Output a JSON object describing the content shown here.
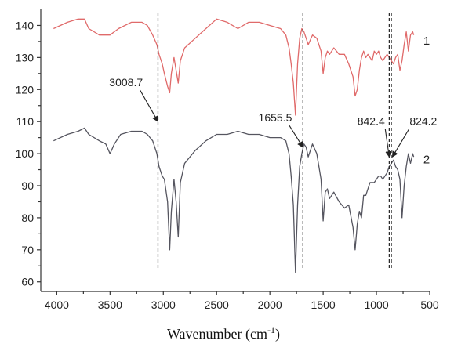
{
  "chart_data": {
    "type": "line",
    "xlabel": "Wavenumber (cm",
    "xlabel_sup": "-1",
    "xlabel_close": ")",
    "ylabel": "",
    "xlim": [
      4150,
      500
    ],
    "ylim": [
      57,
      145
    ],
    "x_ticks": [
      4000,
      3500,
      3000,
      2500,
      2000,
      1500,
      1000,
      500
    ],
    "y_ticks": [
      60,
      70,
      80,
      90,
      100,
      110,
      120,
      130,
      140
    ],
    "reference_lines": [
      3050,
      1690,
      880,
      860
    ],
    "annotations": [
      {
        "text": "3008.7",
        "text_x": 3350,
        "text_y": 121,
        "arrow_to_x": 3050,
        "arrow_to_y": 110
      },
      {
        "text": "1655.5",
        "text_x": 1950,
        "text_y": 110,
        "arrow_to_x": 1690,
        "arrow_to_y": 102
      },
      {
        "text": "842.4",
        "text_x": 1050,
        "text_y": 109,
        "arrow_to_x": 880,
        "arrow_to_y": 99
      },
      {
        "text": "824.2",
        "text_x": 560,
        "text_y": 109,
        "arrow_to_x": 850,
        "arrow_to_y": 99
      }
    ],
    "series": [
      {
        "name": "1",
        "color": "#e06a6a",
        "label_x": 560,
        "label_y": 134,
        "x": [
          4030,
          3900,
          3800,
          3740,
          3700,
          3600,
          3500,
          3420,
          3300,
          3200,
          3150,
          3100,
          3060,
          3040,
          3010,
          2990,
          2960,
          2940,
          2925,
          2900,
          2880,
          2860,
          2840,
          2800,
          2700,
          2600,
          2500,
          2400,
          2300,
          2200,
          2100,
          2000,
          1900,
          1850,
          1820,
          1800,
          1780,
          1760,
          1740,
          1720,
          1700,
          1680,
          1660,
          1640,
          1600,
          1560,
          1520,
          1500,
          1480,
          1460,
          1440,
          1400,
          1350,
          1300,
          1260,
          1220,
          1200,
          1180,
          1160,
          1140,
          1120,
          1100,
          1080,
          1060,
          1040,
          1020,
          1000,
          980,
          960,
          940,
          920,
          900,
          880,
          860,
          840,
          820,
          800,
          780,
          760,
          740,
          720,
          700,
          680,
          660,
          650
        ],
        "y": [
          139,
          141,
          142,
          142,
          139,
          137,
          137,
          139,
          141,
          141,
          140,
          137,
          134,
          131,
          128,
          125,
          121,
          119,
          125,
          130,
          126,
          122,
          129,
          133,
          136,
          139,
          142,
          141,
          139,
          141,
          141,
          140,
          139,
          137,
          133,
          128,
          122,
          112,
          128,
          136,
          139,
          138,
          136,
          134,
          137,
          136,
          132,
          125,
          130,
          132,
          131,
          133,
          131,
          131,
          128,
          124,
          118,
          120,
          126,
          130,
          132,
          130,
          131,
          130,
          129,
          132,
          131,
          132,
          130,
          129,
          130,
          131,
          130,
          129,
          128,
          130,
          131,
          126,
          129,
          134,
          138,
          132,
          137,
          138,
          137
        ]
      },
      {
        "name": "2",
        "color": "#55555f",
        "label_x": 560,
        "label_y": 97,
        "x": [
          4030,
          3900,
          3800,
          3740,
          3700,
          3600,
          3540,
          3500,
          3460,
          3400,
          3300,
          3200,
          3150,
          3100,
          3060,
          3040,
          3010,
          2990,
          2960,
          2940,
          2925,
          2900,
          2880,
          2860,
          2840,
          2800,
          2700,
          2600,
          2500,
          2400,
          2300,
          2200,
          2100,
          2000,
          1900,
          1850,
          1820,
          1800,
          1780,
          1760,
          1740,
          1720,
          1700,
          1680,
          1660,
          1640,
          1600,
          1560,
          1520,
          1500,
          1480,
          1460,
          1440,
          1400,
          1350,
          1300,
          1260,
          1220,
          1200,
          1180,
          1160,
          1140,
          1120,
          1100,
          1080,
          1060,
          1040,
          1020,
          1000,
          980,
          960,
          940,
          920,
          900,
          880,
          860,
          840,
          820,
          800,
          780,
          760,
          740,
          720,
          700,
          680,
          660,
          650
        ],
        "y": [
          104,
          106,
          107,
          108,
          106,
          104,
          103,
          100,
          103,
          106,
          107,
          107,
          106,
          104,
          100,
          96,
          93,
          92,
          85,
          70,
          82,
          92,
          85,
          74,
          91,
          97,
          101,
          104,
          106,
          106,
          107,
          106,
          106,
          105,
          105,
          104,
          100,
          93,
          84,
          63,
          84,
          96,
          100,
          103,
          102,
          99,
          103,
          100,
          92,
          79,
          88,
          89,
          86,
          88,
          85,
          83,
          84,
          77,
          70,
          78,
          82,
          80,
          87,
          87,
          89,
          91,
          91,
          91,
          92,
          93,
          93,
          92,
          93,
          94,
          96,
          97,
          98,
          96,
          95,
          92,
          80,
          90,
          96,
          100,
          97,
          100,
          99
        ]
      }
    ]
  }
}
